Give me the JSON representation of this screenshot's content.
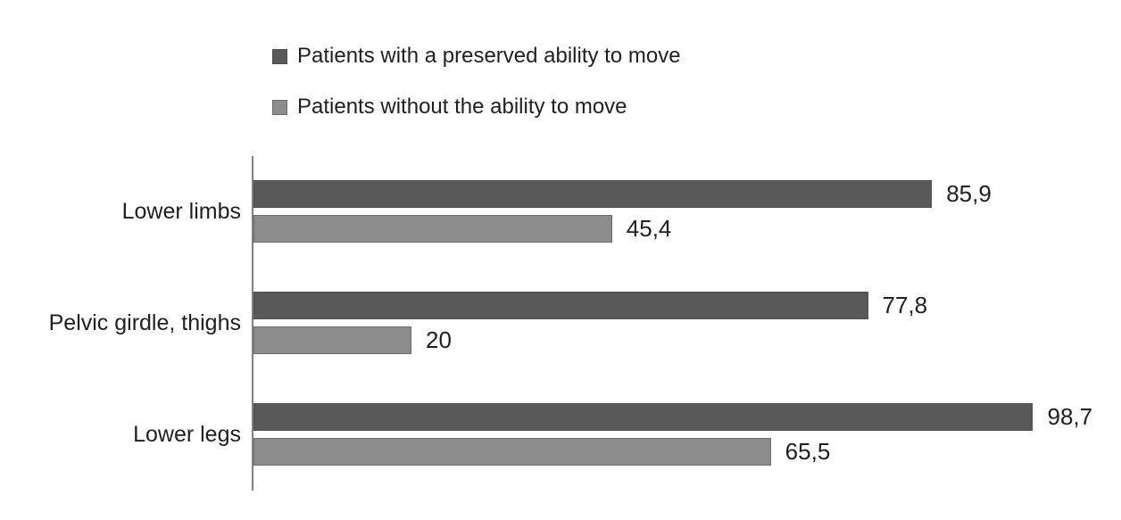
{
  "chart_data": {
    "type": "bar",
    "orientation": "horizontal",
    "categories": [
      "Lower limbs",
      "Pelvic girdle, thighs",
      "Lower legs"
    ],
    "series": [
      {
        "name": "Patients with a preserved ability to move",
        "color": "#595959",
        "border_color": "#4d4d4d",
        "values": [
          85.9,
          77.8,
          98.7
        ],
        "value_labels": [
          "85,9",
          "77,8",
          "98,7"
        ]
      },
      {
        "name": "Patients without the ability to move",
        "color": "#8c8c8c",
        "border_color": "#6b6b6b",
        "values": [
          45.4,
          20,
          65.5
        ],
        "value_labels": [
          "45,4",
          "20",
          "65,5"
        ]
      }
    ],
    "xlim": [
      0,
      100
    ],
    "grid": false,
    "legend_position": "top",
    "value_label_position": "outside-end",
    "decimal_separator": ","
  },
  "legend": {
    "items": [
      {
        "label": "Patients with a preserved ability to move",
        "color": "#595959",
        "border_color": "#4d4d4d"
      },
      {
        "label": "Patients without the ability to move",
        "color": "#8c8c8c",
        "border_color": "#6b6b6b"
      }
    ]
  },
  "colors": {
    "background": "#ffffff",
    "axis_line": "#808080",
    "text": "#1f1f1f"
  }
}
